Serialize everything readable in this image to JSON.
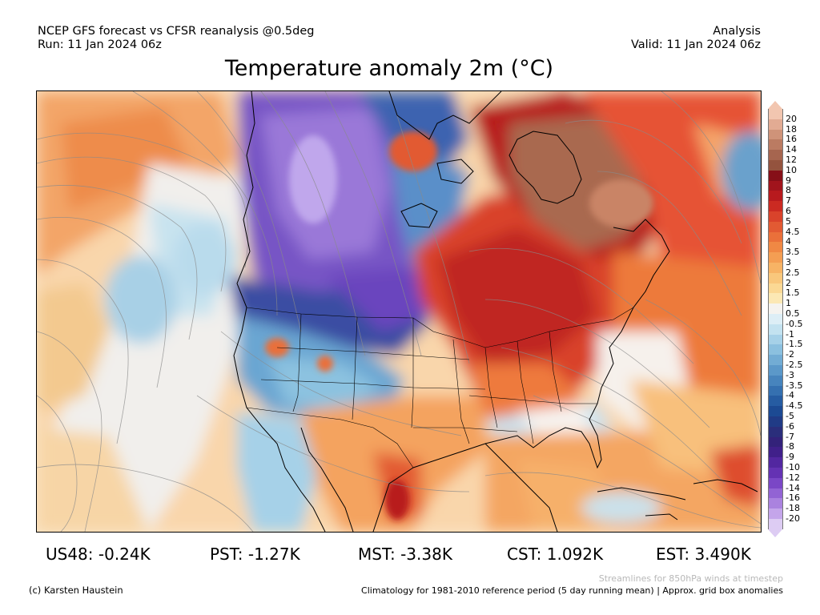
{
  "header": {
    "source_line": "NCEP GFS forecast vs CFSR reanalysis @0.5deg",
    "run_line": "Run: 11 Jan 2024 06z",
    "mode": "Analysis",
    "valid_line": "Valid: 11 Jan 2024 06z"
  },
  "title": "Temperature anomaly 2m (°C)",
  "colorbar": {
    "labels": [
      "20",
      "18",
      "16",
      "14",
      "12",
      "10",
      "9",
      "8",
      "7",
      "6",
      "5",
      "4.5",
      "4",
      "3.5",
      "3",
      "2.5",
      "2",
      "1.5",
      "1",
      "0.5",
      "-0.5",
      "-1",
      "-1.5",
      "-2",
      "-2.5",
      "-3",
      "-3.5",
      "-4",
      "-4.5",
      "-5",
      "-6",
      "-7",
      "-8",
      "-9",
      "-10",
      "-12",
      "-14",
      "-16",
      "-18",
      "-20"
    ],
    "colors": [
      "#f2c6b0",
      "#e2ab93",
      "#cf9379",
      "#bb7b62",
      "#a6654f",
      "#94533e",
      "#860f18",
      "#a1141c",
      "#b81a1e",
      "#cb2a22",
      "#d9432b",
      "#e25a33",
      "#ea703a",
      "#f08844",
      "#f49e53",
      "#f7b365",
      "#f9c77c",
      "#fbd894",
      "#fce8b4",
      "#f5f3ef",
      "#ddeef6",
      "#c3e2f0",
      "#a6d1e8",
      "#8bc0df",
      "#72acd4",
      "#5b98c9",
      "#4784bd",
      "#3570b0",
      "#265ca2",
      "#1c4a93",
      "#203b86",
      "#2a2e7b",
      "#33227a",
      "#40208a",
      "#5227a0",
      "#6432b3",
      "#7a47c6",
      "#9263d4",
      "#aa82df",
      "#c4a5ea",
      "#ddccf3"
    ]
  },
  "stats": [
    {
      "label": "US48: -0.24K"
    },
    {
      "label": "PST: -1.27K"
    },
    {
      "label": "MST: -3.38K"
    },
    {
      "label": "CST: 1.092K"
    },
    {
      "label": "EST: 3.490K"
    }
  ],
  "footer": {
    "credit": "(c) Karsten Haustein",
    "streamlines_note": "Streamlines for 850hPa winds at timestep",
    "climatology_note": "Climatology for 1981-2010 reference period (5 day running mean) | Approx. grid box anomalies"
  }
}
